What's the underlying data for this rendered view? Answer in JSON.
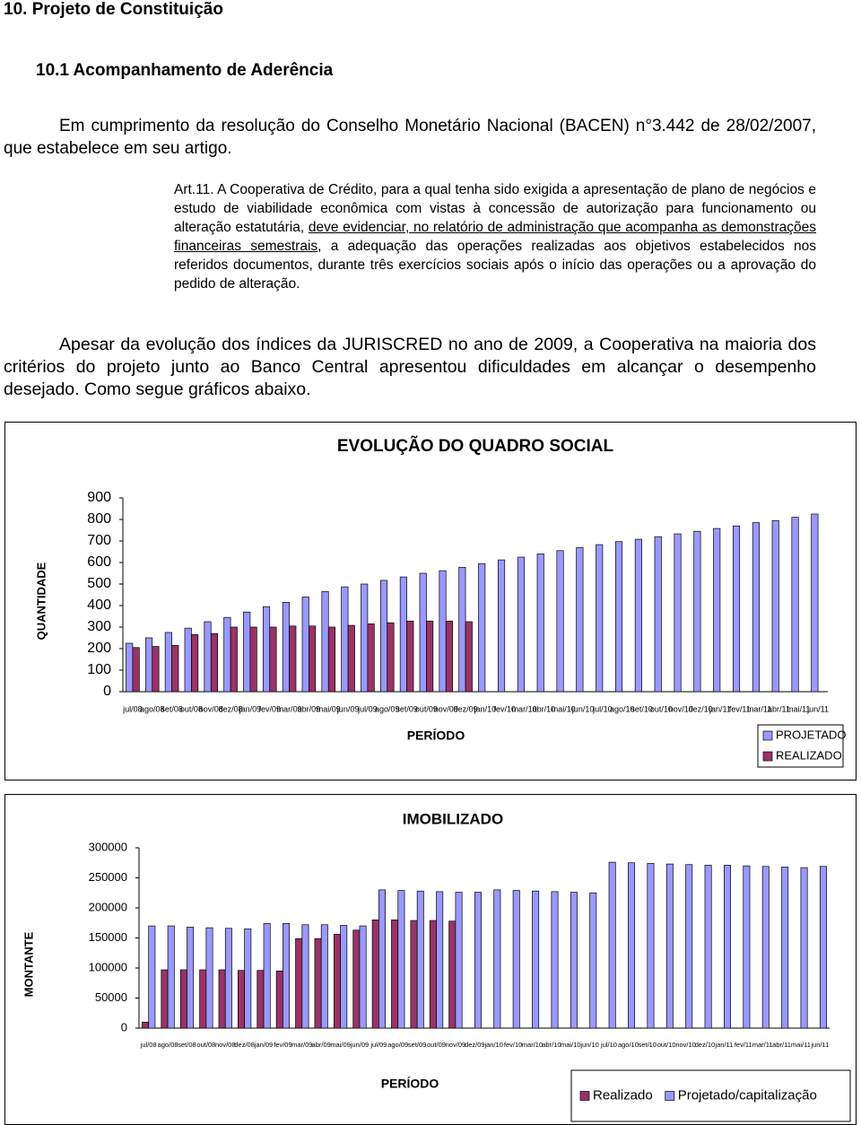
{
  "document": {
    "heading": "10. Projeto de Constituição",
    "subheading": "10.1 Acompanhamento de Aderência",
    "paragraph_1": "Em cumprimento da resolução do Conselho Monetário Nacional (BACEN) n°3.442 de 28/02/2007, que estabelece em seu artigo.",
    "article": {
      "before": "Art.11. A Cooperativa de Crédito, para a qual tenha sido exigida a apresentação de plano de negócios e estudo de viabilidade econômica com vistas à concessão de autorização para funcionamento ou alteração estatutária, ",
      "underlined": "deve evidenciar, no relatório de administração que acompanha as demonstrações financeiras semestrais",
      "after": ", a adequação das operações realizadas aos objetivos estabelecidos nos referidos documentos, durante três exercícios sociais após o início das operações ou a aprovação do pedido de alteração."
    },
    "paragraph_2": "Apesar da evolução dos índices da JURISCRED no ano de 2009, a Cooperativa na maioria dos critérios do projeto junto ao Banco Central apresentou dificuldades em alcançar o desempenho desejado. Como segue gráficos abaixo."
  },
  "chart_data": [
    {
      "type": "bar",
      "title": "EVOLUÇÃO DO QUADRO SOCIAL",
      "x_label": "PERÍODO",
      "y_label": "QUANTIDADE",
      "categories": [
        "jul/08",
        "ago/08",
        "set/08",
        "out/08",
        "nov/08",
        "dez/08",
        "jan/09",
        "fev/09",
        "mar/09",
        "abr/09",
        "mai/09",
        "jun/09",
        "jul/09",
        "ago/09",
        "set/09",
        "out/09",
        "nov/09",
        "dez/09",
        "jan/10",
        "fev/10",
        "mar/10",
        "abr/10",
        "mai/10",
        "jun/10",
        "jul/10",
        "ago/10",
        "set/10",
        "out/10",
        "nov/10",
        "dez/10",
        "jan/11",
        "fev/11",
        "mar/11",
        "abr/11",
        "mai/11",
        "jun/11"
      ],
      "series": [
        {
          "name": "PROJETADO",
          "color": "#9999ff",
          "values": [
            225,
            250,
            275,
            295,
            325,
            345,
            370,
            395,
            415,
            440,
            465,
            487,
            500,
            517,
            533,
            550,
            562,
            578,
            595,
            612,
            625,
            640,
            655,
            670,
            683,
            697,
            708,
            720,
            733,
            745,
            758,
            770,
            785,
            795,
            810,
            825
          ]
        },
        {
          "name": "REALIZADO",
          "color": "#993366",
          "values": [
            205,
            210,
            215,
            265,
            270,
            300,
            300,
            300,
            305,
            305,
            300,
            308,
            315,
            320,
            328,
            328,
            328,
            325,
            null,
            null,
            null,
            null,
            null,
            null,
            null,
            null,
            null,
            null,
            null,
            null,
            null,
            null,
            null,
            null,
            null,
            null
          ]
        }
      ],
      "ylim": [
        0,
        900
      ],
      "yticks": [
        0,
        100,
        200,
        300,
        400,
        500,
        600,
        700,
        800,
        900
      ]
    },
    {
      "type": "bar",
      "title": "IMOBILIZADO",
      "x_label": "PERÍODO",
      "y_label": "MONTANTE",
      "categories": [
        "jul/08",
        "ago/08",
        "set/08",
        "out/08",
        "nov/08",
        "dez/08",
        "jan/09",
        "fev/09",
        "mar/09",
        "abr/09",
        "mai/09",
        "jun/09",
        "jul/09",
        "ago/09",
        "set/09",
        "out/09",
        "nov/09",
        "dez/09",
        "jan/10",
        "fev/10",
        "mar/10",
        "abr/10",
        "mai/10",
        "jun/10",
        "jul/10",
        "ago/10",
        "set/10",
        "out/10",
        "nov/10",
        "dez/10",
        "jan/11",
        "fev/11",
        "mar/11",
        "abr/11",
        "mai/11",
        "jun/11"
      ],
      "series": [
        {
          "name": "Realizado",
          "color": "#993366",
          "values": [
            10000,
            97000,
            97000,
            97000,
            97000,
            96000,
            96000,
            95000,
            149000,
            149000,
            156000,
            163000,
            180000,
            180000,
            179000,
            179000,
            178000,
            null,
            null,
            null,
            null,
            null,
            null,
            null,
            null,
            null,
            null,
            null,
            null,
            null,
            null,
            null,
            null,
            null,
            null,
            null
          ]
        },
        {
          "name": "Projetado/capitalização",
          "color": "#9999ff",
          "values": [
            170000,
            170000,
            168000,
            167000,
            166000,
            165000,
            174000,
            174000,
            172000,
            172000,
            171000,
            170000,
            230000,
            229000,
            228000,
            227000,
            226000,
            226000,
            230000,
            229000,
            228000,
            227000,
            226000,
            225000,
            276000,
            275000,
            274000,
            273000,
            272000,
            271000,
            271000,
            270000,
            269000,
            268000,
            267000,
            269000
          ]
        }
      ],
      "ylim": [
        0,
        300000
      ],
      "yticks": [
        0,
        50000,
        100000,
        150000,
        200000,
        250000,
        300000
      ]
    }
  ]
}
